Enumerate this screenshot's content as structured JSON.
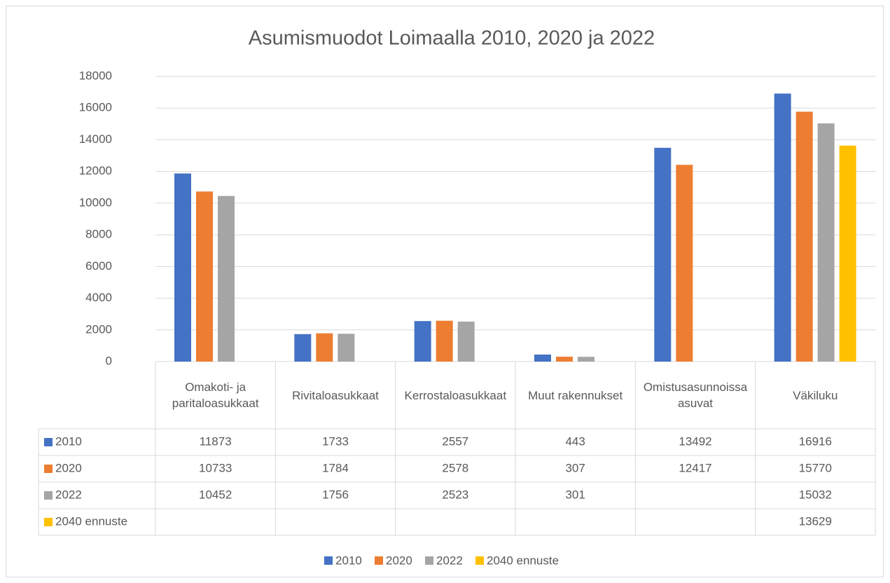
{
  "chart_data": {
    "type": "bar",
    "title": "Asumismuodot Loimaalla 2010, 2020 ja 2022",
    "categories": [
      "Omakoti- ja paritaloasukkaat",
      "Rivitaloasukkaat",
      "Kerrostaloasukkaat",
      "Muut rakennukset",
      "Omistusasunnoissa asuvat",
      "Väkiluku"
    ],
    "series": [
      {
        "name": "2010",
        "color": "#4472c4",
        "values": [
          11873,
          1733,
          2557,
          443,
          13492,
          16916
        ]
      },
      {
        "name": "2020",
        "color": "#ed7d31",
        "values": [
          10733,
          1784,
          2578,
          307,
          12417,
          15770
        ]
      },
      {
        "name": "2022",
        "color": "#a5a5a5",
        "values": [
          10452,
          1756,
          2523,
          301,
          null,
          15032
        ]
      },
      {
        "name": "2040 ennuste",
        "color": "#ffc000",
        "values": [
          null,
          null,
          null,
          null,
          null,
          13629
        ]
      }
    ],
    "ylim": [
      0,
      18000
    ],
    "yticks": [
      0,
      2000,
      4000,
      6000,
      8000,
      10000,
      12000,
      14000,
      16000,
      18000
    ],
    "grid": true,
    "legend": "bottom",
    "data_table": true
  }
}
